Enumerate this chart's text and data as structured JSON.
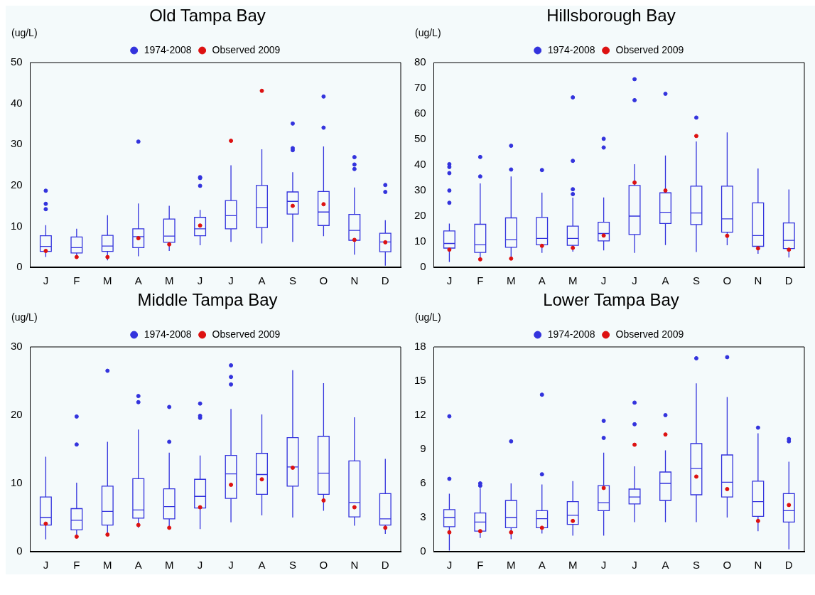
{
  "chart_data": [
    {
      "type": "box",
      "title": "Old Tampa Bay",
      "ylabel": "(ug/L)",
      "categories": [
        "J",
        "F",
        "M",
        "A",
        "M",
        "J",
        "J",
        "A",
        "S",
        "O",
        "N",
        "D"
      ],
      "ylim": [
        0,
        50
      ],
      "yticks": [
        0,
        10,
        20,
        30,
        40,
        50
      ],
      "legend": "top",
      "marker": "circle",
      "series": [
        {
          "name": "1974-2008",
          "color": "#3333dd",
          "boxes": [
            {
              "low": 2.5,
              "q1": 3.9,
              "median": 5.1,
              "q3": 7.7,
              "high": 10.3,
              "outliers": [
                18.7,
                15.5,
                14.2
              ]
            },
            {
              "low": 2.2,
              "q1": 3.5,
              "median": 4.8,
              "q3": 7.4,
              "high": 9.4
            },
            {
              "low": 1.7,
              "q1": 3.9,
              "median": 5.2,
              "q3": 7.8,
              "high": 12.7
            },
            {
              "low": 2.7,
              "q1": 4.8,
              "median": 7.5,
              "q3": 9.4,
              "high": 15.6,
              "outliers": [
                30.7
              ]
            },
            {
              "low": 4.0,
              "q1": 6.1,
              "median": 7.6,
              "q3": 11.8,
              "high": 15.0
            },
            {
              "low": 5.4,
              "q1": 7.7,
              "median": 9.4,
              "q3": 12.2,
              "high": 14.0,
              "outliers": [
                22.0,
                21.8,
                19.9
              ]
            },
            {
              "low": 6.2,
              "q1": 9.4,
              "median": 12.6,
              "q3": 16.3,
              "high": 24.9
            },
            {
              "low": 5.8,
              "q1": 9.7,
              "median": 14.6,
              "q3": 20.0,
              "high": 28.8
            },
            {
              "low": 6.2,
              "q1": 13.0,
              "median": 16.1,
              "q3": 18.4,
              "high": 23.2,
              "outliers": [
                35.1,
                29.1,
                28.6
              ]
            },
            {
              "low": 7.6,
              "q1": 10.2,
              "median": 13.5,
              "q3": 18.5,
              "high": 29.5,
              "outliers": [
                41.7,
                34.1
              ]
            },
            {
              "low": 3.1,
              "q1": 6.6,
              "median": 9.0,
              "q3": 12.9,
              "high": 19.5,
              "outliers": [
                26.9,
                25.1,
                24.0
              ]
            },
            {
              "low": 0.4,
              "q1": 3.8,
              "median": 6.2,
              "q3": 8.3,
              "high": 11.5,
              "outliers": [
                20.1,
                18.4
              ]
            }
          ]
        },
        {
          "name": "Observed 2009",
          "type": "scatter",
          "color": "#dd1111",
          "values": [
            4.0,
            2.5,
            2.5,
            7.1,
            5.6,
            10.2,
            30.9,
            43.1,
            15.0,
            15.4,
            6.7,
            6.1
          ]
        }
      ]
    },
    {
      "type": "box",
      "title": "Hillsborough Bay",
      "ylabel": "(ug/L)",
      "categories": [
        "J",
        "F",
        "M",
        "A",
        "M",
        "J",
        "J",
        "A",
        "S",
        "O",
        "N",
        "D"
      ],
      "ylim": [
        0,
        80
      ],
      "yticks": [
        0,
        10,
        20,
        30,
        40,
        50,
        60,
        70,
        80
      ],
      "legend": "top",
      "marker": "circle",
      "series": [
        {
          "name": "1974-2008",
          "color": "#3333dd",
          "boxes": [
            {
              "low": 2.1,
              "q1": 7.5,
              "median": 9.3,
              "q3": 14.2,
              "high": 17.1,
              "outliers": [
                40.3,
                39.2,
                36.8,
                30.0,
                25.2
              ]
            },
            {
              "low": 3.3,
              "q1": 5.8,
              "median": 8.8,
              "q3": 16.8,
              "high": 32.8,
              "outliers": [
                43.1,
                35.5
              ]
            },
            {
              "low": 3.6,
              "q1": 7.8,
              "median": 10.8,
              "q3": 19.3,
              "high": 35.5,
              "outliers": [
                47.5,
                38.2
              ]
            },
            {
              "low": 5.6,
              "q1": 8.8,
              "median": 11.3,
              "q3": 19.5,
              "high": 29.2,
              "outliers": [
                38.0
              ]
            },
            {
              "low": 6.1,
              "q1": 8.6,
              "median": 11.3,
              "q3": 16.1,
              "high": 27.2,
              "outliers": [
                66.4,
                41.6,
                30.5,
                28.6
              ]
            },
            {
              "low": 6.6,
              "q1": 10.3,
              "median": 13.2,
              "q3": 17.6,
              "high": 27.3,
              "outliers": [
                50.2,
                46.8
              ]
            },
            {
              "low": 5.6,
              "q1": 12.8,
              "median": 20.0,
              "q3": 32.0,
              "high": 40.3,
              "outliers": [
                73.5,
                65.3
              ]
            },
            {
              "low": 8.7,
              "q1": 17.1,
              "median": 21.5,
              "q3": 29.1,
              "high": 43.7,
              "outliers": [
                67.8
              ]
            },
            {
              "low": 6.0,
              "q1": 16.7,
              "median": 21.2,
              "q3": 31.7,
              "high": 49.2,
              "outliers": [
                58.5
              ]
            },
            {
              "low": 8.6,
              "q1": 13.7,
              "median": 18.9,
              "q3": 31.7,
              "high": 52.7
            },
            {
              "low": 5.3,
              "q1": 8.2,
              "median": 12.4,
              "q3": 25.2,
              "high": 38.6
            },
            {
              "low": 3.8,
              "q1": 7.3,
              "median": 10.5,
              "q3": 17.3,
              "high": 30.4
            }
          ]
        },
        {
          "name": "Observed 2009",
          "type": "scatter",
          "color": "#dd1111",
          "values": [
            6.9,
            3.1,
            3.4,
            8.4,
            7.6,
            12.4,
            33.1,
            30.0,
            51.3,
            12.3,
            7.4,
            6.9
          ]
        }
      ]
    },
    {
      "type": "box",
      "title": "Middle Tampa Bay",
      "ylabel": "(ug/L)",
      "categories": [
        "J",
        "F",
        "M",
        "A",
        "M",
        "J",
        "J",
        "A",
        "S",
        "O",
        "N",
        "D"
      ],
      "ylim": [
        0,
        30
      ],
      "yticks": [
        0,
        10,
        20,
        30
      ],
      "legend": "top",
      "marker": "circle",
      "series": [
        {
          "name": "1974-2008",
          "color": "#3333dd",
          "boxes": [
            {
              "low": 1.8,
              "q1": 3.9,
              "median": 5.0,
              "q3": 8.0,
              "high": 13.9
            },
            {
              "low": 2.3,
              "q1": 3.2,
              "median": 4.6,
              "q3": 6.3,
              "high": 10.1,
              "outliers": [
                19.8,
                15.7
              ]
            },
            {
              "low": 2.5,
              "q1": 3.9,
              "median": 5.9,
              "q3": 9.6,
              "high": 16.1,
              "outliers": [
                26.5
              ]
            },
            {
              "low": 3.5,
              "q1": 4.9,
              "median": 6.1,
              "q3": 10.7,
              "high": 17.9,
              "outliers": [
                22.8,
                21.9
              ]
            },
            {
              "low": 3.5,
              "q1": 4.8,
              "median": 6.6,
              "q3": 9.2,
              "high": 14.5,
              "outliers": [
                21.2,
                16.1
              ]
            },
            {
              "low": 3.3,
              "q1": 6.4,
              "median": 8.1,
              "q3": 10.6,
              "high": 14.1,
              "outliers": [
                21.7,
                19.9,
                19.6
              ]
            },
            {
              "low": 4.3,
              "q1": 7.8,
              "median": 11.4,
              "q3": 14.1,
              "high": 20.9,
              "outliers": [
                27.3,
                25.6,
                24.5
              ]
            },
            {
              "low": 5.3,
              "q1": 8.4,
              "median": 11.3,
              "q3": 14.4,
              "high": 20.1
            },
            {
              "low": 5.0,
              "q1": 9.6,
              "median": 12.4,
              "q3": 16.7,
              "high": 26.6
            },
            {
              "low": 6.0,
              "q1": 8.4,
              "median": 11.5,
              "q3": 16.9,
              "high": 24.7
            },
            {
              "low": 3.8,
              "q1": 5.1,
              "median": 7.2,
              "q3": 13.3,
              "high": 19.7
            },
            {
              "low": 2.6,
              "q1": 3.9,
              "median": 4.8,
              "q3": 8.5,
              "high": 13.6
            }
          ]
        },
        {
          "name": "Observed 2009",
          "type": "scatter",
          "color": "#dd1111",
          "values": [
            4.1,
            2.2,
            2.5,
            3.9,
            3.5,
            6.5,
            9.8,
            10.6,
            12.3,
            7.5,
            6.5,
            3.5
          ]
        }
      ]
    },
    {
      "type": "box",
      "title": "Lower Tampa Bay",
      "ylabel": "(ug/L)",
      "categories": [
        "J",
        "F",
        "M",
        "A",
        "M",
        "J",
        "J",
        "A",
        "S",
        "O",
        "N",
        "D"
      ],
      "ylim": [
        0,
        18
      ],
      "yticks": [
        0,
        3,
        6,
        9,
        12,
        15,
        18
      ],
      "legend": "top",
      "marker": "circle",
      "series": [
        {
          "name": "1974-2008",
          "color": "#3333dd",
          "boxes": [
            {
              "low": 0.1,
              "q1": 2.2,
              "median": 3.0,
              "q3": 3.7,
              "high": 5.1,
              "outliers": [
                11.9,
                6.4
              ]
            },
            {
              "low": 1.2,
              "q1": 1.8,
              "median": 2.6,
              "q3": 3.4,
              "high": 5.6,
              "outliers": [
                6.0,
                5.8
              ]
            },
            {
              "low": 1.1,
              "q1": 2.1,
              "median": 3.0,
              "q3": 4.5,
              "high": 6.0,
              "outliers": [
                9.7
              ]
            },
            {
              "low": 1.6,
              "q1": 2.1,
              "median": 2.9,
              "q3": 3.6,
              "high": 5.9,
              "outliers": [
                13.8,
                6.8
              ]
            },
            {
              "low": 1.4,
              "q1": 2.4,
              "median": 3.2,
              "q3": 4.4,
              "high": 6.2
            },
            {
              "low": 1.4,
              "q1": 3.6,
              "median": 4.3,
              "q3": 5.8,
              "high": 8.7,
              "outliers": [
                11.5,
                10.0
              ]
            },
            {
              "low": 2.6,
              "q1": 4.2,
              "median": 4.8,
              "q3": 5.5,
              "high": 7.5,
              "outliers": [
                13.1,
                11.2
              ]
            },
            {
              "low": 2.6,
              "q1": 4.5,
              "median": 6.0,
              "q3": 7.0,
              "high": 8.9,
              "outliers": [
                12.0
              ]
            },
            {
              "low": 2.6,
              "q1": 5.0,
              "median": 7.3,
              "q3": 9.5,
              "high": 14.8,
              "outliers": [
                17.0
              ]
            },
            {
              "low": 3.0,
              "q1": 4.8,
              "median": 6.1,
              "q3": 8.5,
              "high": 13.6,
              "outliers": [
                17.1
              ]
            },
            {
              "low": 1.8,
              "q1": 3.1,
              "median": 4.4,
              "q3": 6.2,
              "high": 10.4,
              "outliers": [
                10.9
              ]
            },
            {
              "low": 0.2,
              "q1": 2.6,
              "median": 3.6,
              "q3": 5.1,
              "high": 7.9,
              "outliers": [
                9.9,
                9.7
              ]
            }
          ]
        },
        {
          "name": "Observed 2009",
          "type": "scatter",
          "color": "#dd1111",
          "values": [
            1.7,
            1.8,
            1.7,
            2.1,
            2.7,
            5.6,
            9.4,
            10.3,
            6.6,
            5.5,
            2.7,
            4.1
          ]
        }
      ]
    }
  ]
}
